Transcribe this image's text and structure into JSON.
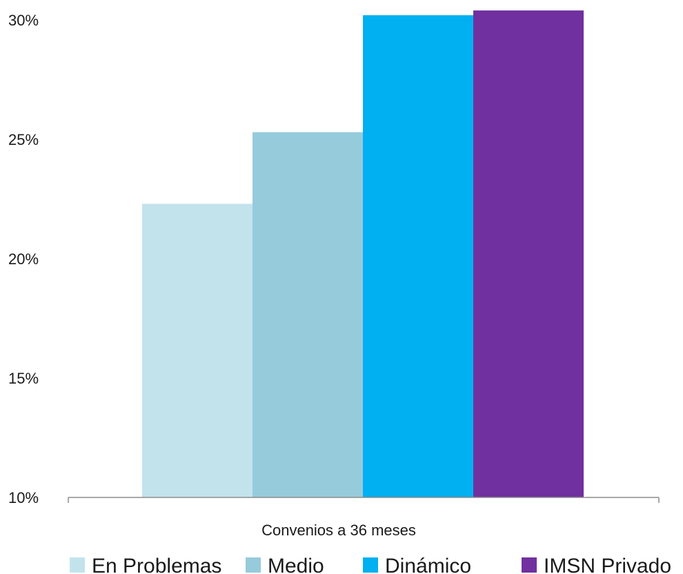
{
  "chart_data": {
    "type": "bar",
    "categories": [
      "Convenios a 36 meses"
    ],
    "series": [
      {
        "name": "En Problemas",
        "values": [
          22.3
        ],
        "color": "#c3e3ec"
      },
      {
        "name": "Medio",
        "values": [
          25.3
        ],
        "color": "#96cbdc"
      },
      {
        "name": "Dinámico",
        "values": [
          30.2
        ],
        "color": "#00b0f0"
      },
      {
        "name": "IMSN Privado",
        "values": [
          30.4
        ],
        "color": "#7030a0"
      }
    ],
    "title": "",
    "xlabel": "",
    "ylabel": "",
    "ylim": [
      10,
      30
    ],
    "yticks": [
      10,
      15,
      20,
      25,
      30
    ],
    "ytick_labels": [
      "10%",
      "15%",
      "20%",
      "25%",
      "30%"
    ],
    "grid": false,
    "legend_position": "bottom"
  }
}
